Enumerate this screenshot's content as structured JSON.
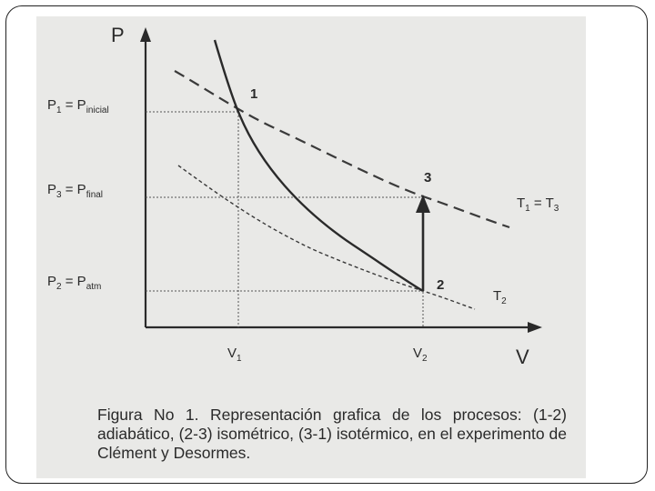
{
  "diagram": {
    "axis_y_label": "P",
    "axis_x_label": "V",
    "pressure_labels": [
      {
        "main": "P",
        "sub": "1",
        "eq": " = P",
        "sub2": "inicial"
      },
      {
        "main": "P",
        "sub": "3",
        "eq": "  = P",
        "sub2": "final"
      },
      {
        "main": "P",
        "sub": "2",
        "eq": "  = P",
        "sub2": "atm"
      }
    ],
    "volume_labels": [
      {
        "main": "V",
        "sub": "1"
      },
      {
        "main": "V",
        "sub": "2"
      }
    ],
    "points": [
      "1",
      "2",
      "3"
    ],
    "isotherm_T1": {
      "a": "T",
      "a_sub": "1",
      "eq": " = ",
      "b": "T",
      "b_sub": "3"
    },
    "isotherm_T2": {
      "main": "T",
      "sub": "2"
    }
  },
  "caption": "Figura No 1. Representación grafica de los procesos: (1-2) adiabático, (2-3) isométrico, (3-1) isotérmico, en el experimento de Clément y Desormes."
}
